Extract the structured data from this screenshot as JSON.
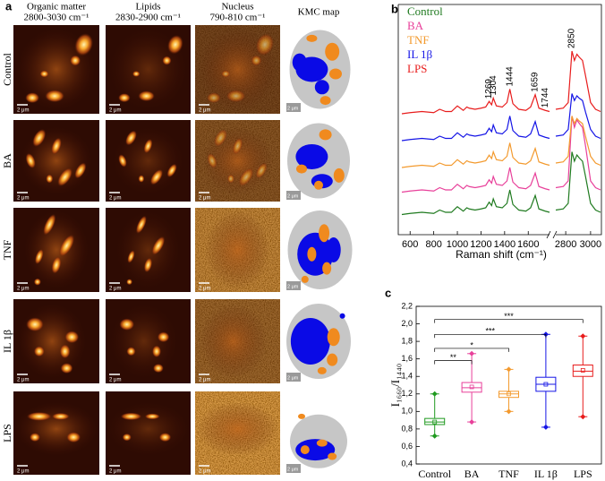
{
  "panel_a": {
    "label": "a",
    "columns": [
      {
        "title": "Organic matter",
        "subtitle": "2800-3030 cm⁻¹"
      },
      {
        "title": "Lipids",
        "subtitle": "2830-2900 cm⁻¹"
      },
      {
        "title": "Nucleus",
        "subtitle": "790-810 cm⁻¹"
      },
      {
        "title": "KMC map"
      }
    ],
    "rows": [
      "Control",
      "BA",
      "TNF",
      "IL 1β",
      "LPS"
    ],
    "scale_bar": "2 μm"
  },
  "chart_data": [
    {
      "type": "line",
      "label": "b",
      "x_label": "Raman shift (cm⁻¹)",
      "xlim": [
        530,
        3080
      ],
      "x_break": [
        1780,
        2720
      ],
      "ylim": [
        0,
        10
      ],
      "xticks": [
        600,
        800,
        1000,
        1200,
        1400,
        1600,
        2800,
        3000
      ],
      "peak_labels": [
        1269,
        1304,
        1444,
        1659,
        1744,
        2850
      ],
      "x": [
        530,
        600,
        700,
        800,
        850,
        900,
        950,
        1000,
        1050,
        1080,
        1100,
        1150,
        1200,
        1240,
        1269,
        1290,
        1304,
        1330,
        1380,
        1420,
        1444,
        1470,
        1520,
        1580,
        1620,
        1659,
        1690,
        1744,
        1780,
        2250,
        2720,
        2780,
        2820,
        2850,
        2870,
        2890,
        2910,
        2935,
        2960,
        3000,
        3040,
        3080
      ],
      "series": [
        {
          "name": "Control",
          "color": "#1f7a1f",
          "values": [
            0.9,
            0.95,
            1.0,
            0.95,
            1.1,
            1.0,
            1.0,
            1.25,
            1.05,
            1.2,
            1.15,
            1.1,
            1.15,
            1.2,
            1.45,
            1.3,
            1.6,
            1.25,
            1.2,
            1.4,
            2.0,
            1.35,
            1.1,
            1.05,
            1.2,
            1.75,
            1.15,
            1.05,
            1.0,
            null,
            1.1,
            1.15,
            1.4,
            3.7,
            3.28,
            3.56,
            3.42,
            3.28,
            2.58,
            1.4,
            1.1,
            1.0
          ]
        },
        {
          "name": "BA",
          "color": "#e8409a",
          "values": [
            1.9,
            1.95,
            2.0,
            1.95,
            2.1,
            2.0,
            2.0,
            2.25,
            2.05,
            2.2,
            2.15,
            2.1,
            2.15,
            2.2,
            2.45,
            2.3,
            2.6,
            2.25,
            2.2,
            2.4,
            3.0,
            2.35,
            2.1,
            2.05,
            2.2,
            2.75,
            2.15,
            2.05,
            2.0,
            null,
            2.1,
            2.15,
            2.4,
            5.3,
            4.79,
            5.13,
            4.96,
            4.79,
            3.94,
            2.4,
            2.1,
            2.0
          ]
        },
        {
          "name": "TNF",
          "color": "#f39a2e",
          "values": [
            3.0,
            3.05,
            3.1,
            3.05,
            3.2,
            3.1,
            3.1,
            3.35,
            3.15,
            3.3,
            3.25,
            3.2,
            3.25,
            3.3,
            3.55,
            3.4,
            3.7,
            3.35,
            3.3,
            3.5,
            4.1,
            3.45,
            3.2,
            3.15,
            3.3,
            3.85,
            3.25,
            3.15,
            3.1,
            null,
            3.2,
            3.25,
            3.5,
            5.3,
            4.96,
            5.19,
            5.07,
            4.96,
            4.38,
            3.5,
            3.2,
            3.1
          ]
        },
        {
          "name": "IL 1β",
          "color": "#1515e6",
          "values": [
            4.2,
            4.25,
            4.3,
            4.25,
            4.4,
            4.3,
            4.3,
            4.55,
            4.35,
            4.5,
            4.45,
            4.4,
            4.45,
            4.5,
            4.75,
            4.6,
            4.9,
            4.55,
            4.5,
            4.7,
            5.3,
            4.65,
            4.4,
            4.35,
            4.5,
            5.05,
            4.45,
            4.35,
            4.3,
            null,
            4.4,
            4.45,
            4.7,
            6.3,
            5.99,
            6.2,
            6.09,
            5.99,
            5.46,
            4.7,
            4.4,
            4.3
          ]
        },
        {
          "name": "LPS",
          "color": "#e81c1c",
          "values": [
            5.4,
            5.45,
            5.5,
            5.45,
            5.6,
            5.5,
            5.5,
            5.75,
            5.55,
            5.7,
            5.65,
            5.6,
            5.65,
            5.7,
            5.95,
            5.8,
            6.1,
            5.75,
            5.7,
            5.9,
            6.5,
            5.85,
            5.6,
            5.55,
            5.7,
            6.25,
            5.65,
            5.55,
            5.5,
            null,
            5.6,
            5.65,
            5.9,
            8.2,
            7.78,
            8.06,
            7.92,
            7.78,
            7.08,
            5.9,
            5.6,
            5.5
          ]
        }
      ]
    },
    {
      "type": "box",
      "label": "c",
      "y_label": "I₁₆₆₀/I₁₄₄₀",
      "ylim": [
        0.4,
        2.2
      ],
      "yticks": [
        {
          "value": 0.4,
          "label": "0,4"
        },
        {
          "value": 0.6,
          "label": "0,6"
        },
        {
          "value": 0.8,
          "label": "0,8"
        },
        {
          "value": 1.0,
          "label": "1,0"
        },
        {
          "value": 1.2,
          "label": "1,2"
        },
        {
          "value": 1.4,
          "label": "1,4"
        },
        {
          "value": 1.6,
          "label": "1,6"
        },
        {
          "value": 1.8,
          "label": "1,8"
        },
        {
          "value": 2.0,
          "label": "2,0"
        },
        {
          "value": 2.2,
          "label": "2,2"
        }
      ],
      "categories": [
        "Control",
        "BA",
        "TNF",
        "IL 1β",
        "LPS"
      ],
      "boxes": [
        {
          "color": "#1f9a1f",
          "min": 0.72,
          "q1": 0.85,
          "median": 0.88,
          "q3": 0.92,
          "max": 1.2,
          "mean": 0.88
        },
        {
          "color": "#e8409a",
          "min": 0.88,
          "q1": 1.22,
          "median": 1.27,
          "q3": 1.33,
          "max": 1.66,
          "mean": 1.28
        },
        {
          "color": "#f39a2e",
          "min": 1.0,
          "q1": 1.16,
          "median": 1.2,
          "q3": 1.23,
          "max": 1.48,
          "mean": 1.2
        },
        {
          "color": "#1515e6",
          "min": 0.82,
          "q1": 1.23,
          "median": 1.31,
          "q3": 1.39,
          "max": 1.88,
          "mean": 1.31
        },
        {
          "color": "#e81c1c",
          "min": 0.94,
          "q1": 1.4,
          "median": 1.46,
          "q3": 1.53,
          "max": 1.86,
          "mean": 1.47
        }
      ],
      "significance": [
        null,
        {
          "label": "**",
          "y": 1.58
        },
        {
          "label": "*",
          "y": 1.72
        },
        {
          "label": "***",
          "y": 1.88
        },
        {
          "label": "***",
          "y": 2.05
        }
      ]
    }
  ]
}
